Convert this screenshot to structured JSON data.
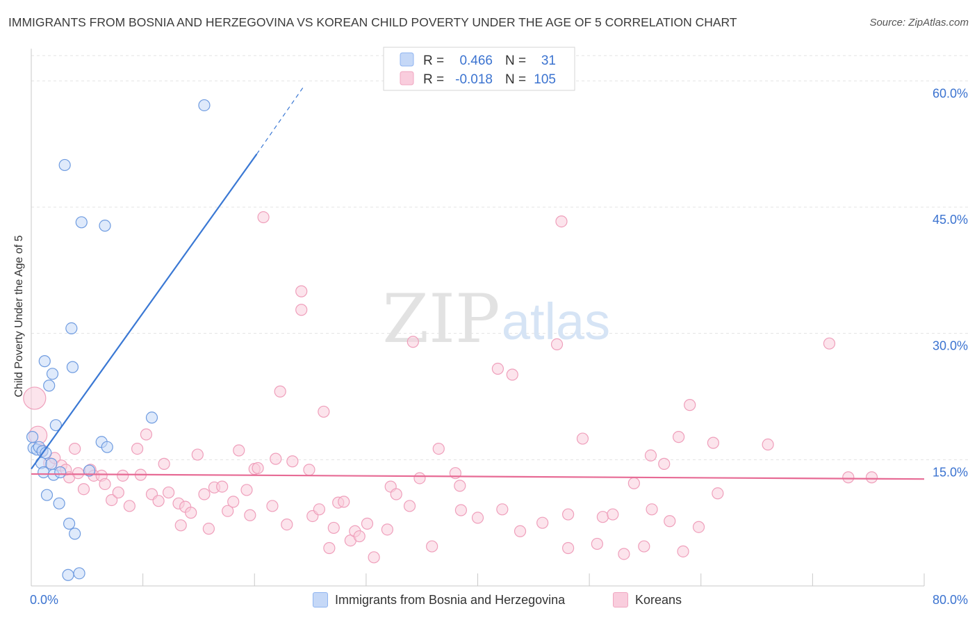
{
  "header": {
    "title": "IMMIGRANTS FROM BOSNIA AND HERZEGOVINA VS KOREAN CHILD POVERTY UNDER THE AGE OF 5 CORRELATION CHART",
    "source": "Source: ZipAtlas.com"
  },
  "watermark": {
    "zip": "ZIP",
    "atlas": "atlas"
  },
  "stats": [
    {
      "r_label": "R =",
      "r_value": "0.466",
      "n_label": "N =",
      "n_value": "31",
      "color": "#8fb4f0",
      "fill": "#c5d8f7"
    },
    {
      "r_label": "R =",
      "r_value": "-0.018",
      "n_label": "N =",
      "n_value": "105",
      "color": "#f0a6c0",
      "fill": "#f9cddd"
    }
  ],
  "legend": {
    "series1": "Immigrants from Bosnia and Herzegovina",
    "series2": "Koreans"
  },
  "chart_data": {
    "type": "scatter",
    "title": "IMMIGRANTS FROM BOSNIA AND HERZEGOVINA VS KOREAN CHILD POVERTY UNDER THE AGE OF 5 CORRELATION CHART",
    "xlabel": "",
    "ylabel": "Child Poverty Under the Age of 5",
    "xlim": [
      0,
      80
    ],
    "ylim": [
      0,
      63
    ],
    "x_tick_labels": [
      "0.0%",
      "80.0%"
    ],
    "y_ticks": [
      15,
      30,
      45,
      60
    ],
    "y_tick_labels": [
      "15.0%",
      "30.0%",
      "45.0%",
      "60.0%"
    ],
    "grid": true,
    "legend_position": "bottom",
    "series": [
      {
        "name": "Immigrants from Bosnia and Herzegovina",
        "color": "#6e9be0",
        "fill": "#c5d8f7",
        "points": [
          [
            0.1,
            17.7
          ],
          [
            0.2,
            16.4
          ],
          [
            0.5,
            16.2
          ],
          [
            0.7,
            16.5
          ],
          [
            0.9,
            14.6
          ],
          [
            1.0,
            16.0
          ],
          [
            1.1,
            13.5
          ],
          [
            1.2,
            26.7
          ],
          [
            1.3,
            15.8
          ],
          [
            1.4,
            10.8
          ],
          [
            1.6,
            23.8
          ],
          [
            1.8,
            14.5
          ],
          [
            1.9,
            25.2
          ],
          [
            2.0,
            13.2
          ],
          [
            2.2,
            19.1
          ],
          [
            2.5,
            9.8
          ],
          [
            2.6,
            13.5
          ],
          [
            3.0,
            50.0
          ],
          [
            3.3,
            1.3
          ],
          [
            3.4,
            7.4
          ],
          [
            3.6,
            30.6
          ],
          [
            3.7,
            26.0
          ],
          [
            3.9,
            6.2
          ],
          [
            4.3,
            1.5
          ],
          [
            4.5,
            43.2
          ],
          [
            5.2,
            13.7
          ],
          [
            6.3,
            17.1
          ],
          [
            6.6,
            42.8
          ],
          [
            6.8,
            16.5
          ],
          [
            10.8,
            20.0
          ],
          [
            15.5,
            57.1
          ]
        ],
        "trend": {
          "x": [
            0,
            20.2
          ],
          "y": [
            13.9,
            51.3
          ],
          "dashed_to": [
            24.5,
            59.5
          ]
        }
      },
      {
        "name": "Koreans",
        "color": "#ef9fbb",
        "fill": "#f9cddd",
        "points": [
          [
            0.3,
            22.3
          ],
          [
            0.6,
            17.9
          ],
          [
            1.0,
            16.1
          ],
          [
            1.6,
            14.6
          ],
          [
            2.1,
            15.2
          ],
          [
            2.7,
            14.3
          ],
          [
            3.1,
            13.8
          ],
          [
            3.4,
            12.9
          ],
          [
            3.9,
            16.3
          ],
          [
            4.2,
            13.4
          ],
          [
            4.7,
            11.5
          ],
          [
            5.3,
            13.8
          ],
          [
            5.6,
            13.1
          ],
          [
            6.3,
            13.1
          ],
          [
            6.6,
            12.1
          ],
          [
            7.2,
            10.2
          ],
          [
            7.8,
            11.1
          ],
          [
            8.2,
            13.1
          ],
          [
            8.8,
            9.5
          ],
          [
            9.5,
            16.3
          ],
          [
            9.8,
            13.2
          ],
          [
            10.3,
            18.0
          ],
          [
            10.8,
            10.9
          ],
          [
            11.4,
            10.1
          ],
          [
            11.9,
            14.5
          ],
          [
            12.3,
            11.1
          ],
          [
            13.2,
            9.8
          ],
          [
            13.4,
            7.2
          ],
          [
            13.8,
            9.4
          ],
          [
            14.3,
            8.7
          ],
          [
            14.9,
            15.6
          ],
          [
            15.5,
            10.9
          ],
          [
            15.9,
            6.8
          ],
          [
            16.4,
            11.7
          ],
          [
            17.1,
            11.8
          ],
          [
            17.6,
            8.9
          ],
          [
            18.1,
            10.0
          ],
          [
            18.6,
            16.1
          ],
          [
            19.3,
            11.4
          ],
          [
            19.6,
            8.4
          ],
          [
            20.0,
            13.9
          ],
          [
            20.3,
            14.0
          ],
          [
            20.8,
            43.8
          ],
          [
            21.6,
            9.5
          ],
          [
            21.9,
            15.1
          ],
          [
            22.3,
            23.1
          ],
          [
            22.9,
            7.3
          ],
          [
            23.4,
            14.8
          ],
          [
            24.2,
            35.0
          ],
          [
            24.2,
            32.8
          ],
          [
            24.9,
            13.8
          ],
          [
            25.2,
            8.3
          ],
          [
            25.8,
            9.1
          ],
          [
            26.2,
            20.7
          ],
          [
            26.7,
            4.5
          ],
          [
            27.1,
            6.9
          ],
          [
            27.5,
            9.9
          ],
          [
            28.0,
            10.0
          ],
          [
            28.6,
            5.4
          ],
          [
            29.0,
            6.5
          ],
          [
            29.4,
            5.9
          ],
          [
            30.1,
            7.4
          ],
          [
            30.7,
            3.4
          ],
          [
            31.9,
            6.7
          ],
          [
            32.2,
            11.8
          ],
          [
            32.7,
            10.9
          ],
          [
            33.9,
            9.5
          ],
          [
            34.2,
            29.0
          ],
          [
            34.8,
            12.8
          ],
          [
            35.9,
            4.7
          ],
          [
            36.5,
            16.3
          ],
          [
            38.0,
            13.4
          ],
          [
            38.4,
            11.9
          ],
          [
            38.5,
            9.0
          ],
          [
            40.0,
            8.1
          ],
          [
            41.8,
            25.8
          ],
          [
            42.2,
            9.1
          ],
          [
            43.1,
            25.1
          ],
          [
            43.8,
            6.5
          ],
          [
            45.8,
            7.5
          ],
          [
            47.1,
            28.7
          ],
          [
            47.5,
            43.3
          ],
          [
            48.1,
            4.5
          ],
          [
            48.1,
            8.5
          ],
          [
            49.4,
            17.5
          ],
          [
            50.7,
            5.0
          ],
          [
            51.2,
            8.2
          ],
          [
            52.1,
            8.5
          ],
          [
            53.1,
            3.8
          ],
          [
            54.0,
            12.2
          ],
          [
            54.9,
            4.7
          ],
          [
            55.5,
            15.5
          ],
          [
            55.6,
            9.1
          ],
          [
            56.7,
            14.5
          ],
          [
            57.2,
            7.7
          ],
          [
            58.0,
            17.7
          ],
          [
            58.4,
            4.1
          ],
          [
            59.0,
            21.5
          ],
          [
            59.8,
            7.0
          ],
          [
            61.1,
            17.0
          ],
          [
            61.5,
            11.0
          ],
          [
            66.0,
            16.8
          ],
          [
            71.5,
            28.8
          ],
          [
            73.2,
            12.9
          ],
          [
            75.3,
            12.9
          ]
        ],
        "trend": {
          "x": [
            0,
            80
          ],
          "y": [
            13.3,
            12.7
          ]
        }
      }
    ]
  }
}
